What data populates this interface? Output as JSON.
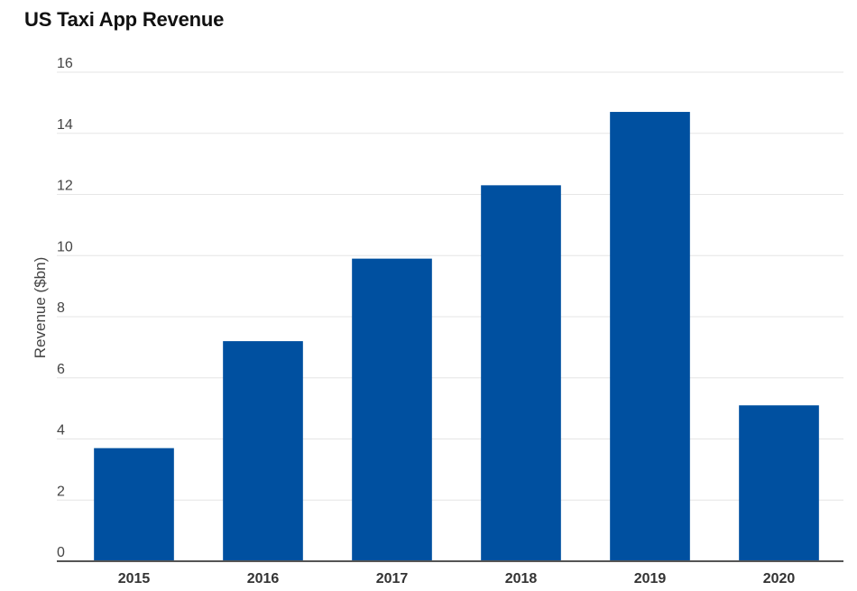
{
  "chart_data": {
    "type": "bar",
    "title": "US Taxi App Revenue",
    "xlabel": "",
    "ylabel": "Revenue ($bn)",
    "categories": [
      "2015",
      "2016",
      "2017",
      "2018",
      "2019",
      "2020"
    ],
    "values": [
      3.7,
      7.2,
      9.9,
      12.3,
      14.7,
      5.1
    ],
    "ylim": [
      0,
      16
    ],
    "yticks": [
      0,
      2,
      4,
      6,
      8,
      10,
      12,
      14,
      16
    ],
    "grid": true,
    "legend": "none",
    "bar_color": "#0050a0"
  }
}
